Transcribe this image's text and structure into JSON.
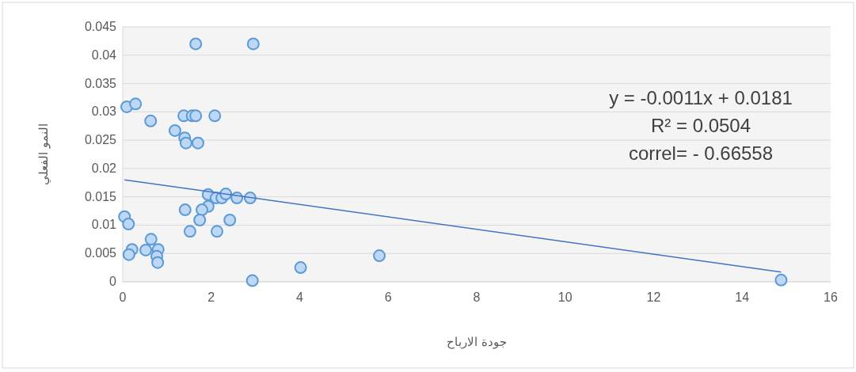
{
  "chart_data": {
    "type": "scatter",
    "xlabel": "جودة الارباح",
    "ylabel": "النمو الفعلي",
    "xlim": [
      0,
      16
    ],
    "xticks": [
      0,
      2,
      4,
      6,
      8,
      10,
      12,
      14,
      16
    ],
    "ylim": [
      0,
      0.045
    ],
    "yticks": [
      0,
      0.005,
      0.01,
      0.015,
      0.02,
      0.025,
      0.03,
      0.035,
      0.04,
      0.045
    ],
    "grid": "y",
    "annotations": [
      "y = -0.0011x + 0.0181",
      "R² = 0.0504",
      "correl= - 0.66558"
    ],
    "series": [
      {
        "color": "#5b9bd5",
        "marker": "circle",
        "x": [
          2.95,
          1.65,
          0.09,
          0.29,
          0.63,
          1.38,
          1.57,
          1.65,
          2.08,
          1.18,
          1.4,
          1.43,
          1.7,
          1.93,
          2.11,
          2.24,
          2.33,
          2.58,
          2.88,
          1.93,
          1.79,
          1.41,
          1.74,
          2.42,
          1.52,
          2.13,
          0.04,
          0.13,
          0.64,
          0.21,
          0.14,
          0.52,
          0.8,
          0.77,
          0.79,
          2.93,
          4.02,
          5.8,
          14.88
        ],
        "values": [
          0.042,
          0.042,
          0.0309,
          0.0314,
          0.0284,
          0.0293,
          0.0293,
          0.0293,
          0.0293,
          0.0267,
          0.0254,
          0.0245,
          0.0245,
          0.0154,
          0.0148,
          0.0148,
          0.0155,
          0.0148,
          0.0148,
          0.0133,
          0.0127,
          0.0127,
          0.0109,
          0.0109,
          0.0089,
          0.0089,
          0.0115,
          0.0102,
          0.0075,
          0.0057,
          0.0048,
          0.0056,
          0.0057,
          0.0045,
          0.0034,
          0.0002,
          0.0025,
          0.0046,
          0.0003
        ]
      },
      {
        "type": "line",
        "color": "#4472c4",
        "x": [
          0.04,
          14.88
        ],
        "values": [
          0.018,
          0.0017
        ]
      }
    ]
  }
}
